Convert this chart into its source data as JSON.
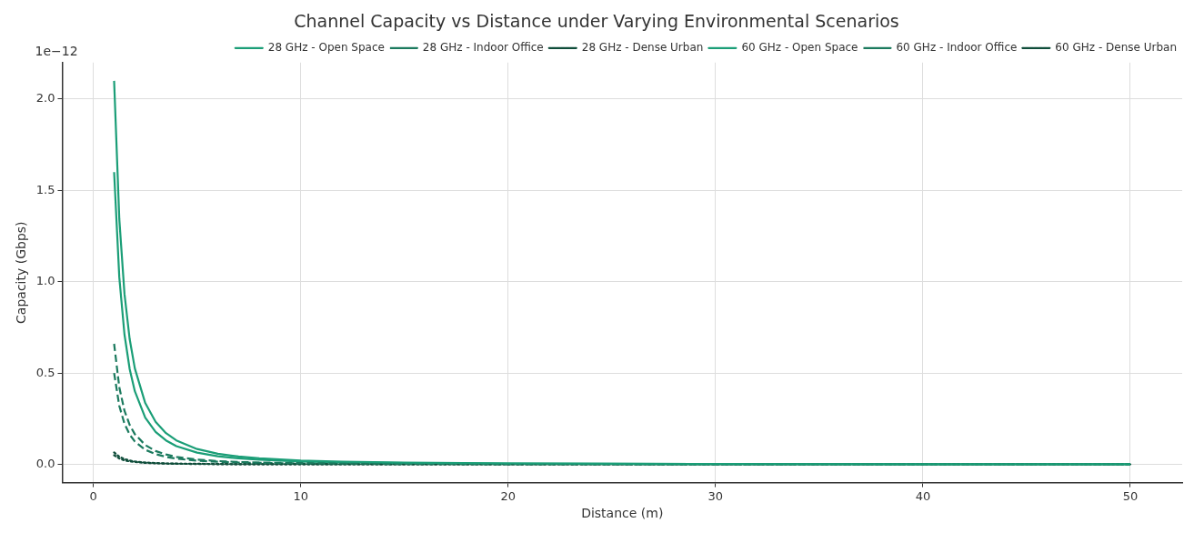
{
  "chart_data": {
    "type": "line",
    "title": "Channel Capacity vs Distance under Varying Environmental Scenarios",
    "xlabel": "Distance (m)",
    "ylabel": "Capacity (Gbps)",
    "annotations": [
      "1e−12"
    ],
    "x": [
      1,
      1.25,
      1.5,
      1.75,
      2,
      2.5,
      3,
      3.5,
      4,
      5,
      6,
      7,
      8,
      10,
      12,
      15,
      20,
      25,
      30,
      40,
      50
    ],
    "series": [
      {
        "name": "28 GHz - Open Space",
        "color": "#1b9e77",
        "line_style": "solid",
        "values": [
          2.1,
          1.344,
          0.933,
          0.686,
          0.525,
          0.336,
          0.233,
          0.171,
          0.131,
          0.084,
          0.058,
          0.043,
          0.033,
          0.021,
          0.015,
          0.009,
          0.005,
          0.003,
          0.002,
          0.001,
          0.001
        ]
      },
      {
        "name": "28 GHz - Indoor Office",
        "color": "#1b7a5e",
        "line_style": "dashed",
        "values": [
          0.66,
          0.422,
          0.293,
          0.216,
          0.165,
          0.106,
          0.073,
          0.054,
          0.041,
          0.026,
          0.018,
          0.013,
          0.01,
          0.007,
          0.005,
          0.003,
          0.002,
          0.001,
          0.001,
          0,
          0
        ]
      },
      {
        "name": "28 GHz - Dense Urban",
        "color": "#0f4d3a",
        "line_style": "dotted",
        "values": [
          0.065,
          0.042,
          0.029,
          0.021,
          0.016,
          0.01,
          0.007,
          0.005,
          0.004,
          0.003,
          0.002,
          0.001,
          0.001,
          0.001,
          0,
          0,
          0,
          0,
          0,
          0,
          0
        ]
      },
      {
        "name": "60 GHz - Open Space",
        "color": "#1b9e77",
        "line_style": "solid",
        "values": [
          1.6,
          1.024,
          0.711,
          0.522,
          0.4,
          0.256,
          0.178,
          0.131,
          0.1,
          0.064,
          0.044,
          0.033,
          0.025,
          0.016,
          0.011,
          0.007,
          0.004,
          0.003,
          0.002,
          0.001,
          0.001
        ]
      },
      {
        "name": "60 GHz - Indoor Office",
        "color": "#1b7a5e",
        "line_style": "dashed",
        "values": [
          0.5,
          0.32,
          0.222,
          0.163,
          0.125,
          0.08,
          0.056,
          0.041,
          0.031,
          0.02,
          0.014,
          0.01,
          0.008,
          0.005,
          0.003,
          0.002,
          0.001,
          0.001,
          0.001,
          0,
          0
        ]
      },
      {
        "name": "60 GHz - Dense Urban",
        "color": "#0f4d3a",
        "line_style": "dotted",
        "values": [
          0.05,
          0.032,
          0.022,
          0.016,
          0.013,
          0.008,
          0.006,
          0.004,
          0.003,
          0.002,
          0.001,
          0.001,
          0.001,
          0.001,
          0,
          0,
          0,
          0,
          0,
          0,
          0
        ]
      }
    ],
    "xlim": [
      -1.5,
      52.5
    ],
    "xticks": [
      0,
      10,
      20,
      30,
      40,
      50
    ],
    "ylim": [
      -0.1,
      2.2
    ],
    "yticks": [
      {
        "value": 0,
        "label": "0.0"
      },
      {
        "value": 0.5,
        "label": "0.5"
      },
      {
        "value": 1,
        "label": "1.0"
      },
      {
        "value": 1.5,
        "label": "1.5"
      },
      {
        "value": 2,
        "label": "2.0"
      }
    ],
    "grid": true,
    "legend": "top right",
    "marker": "none"
  }
}
